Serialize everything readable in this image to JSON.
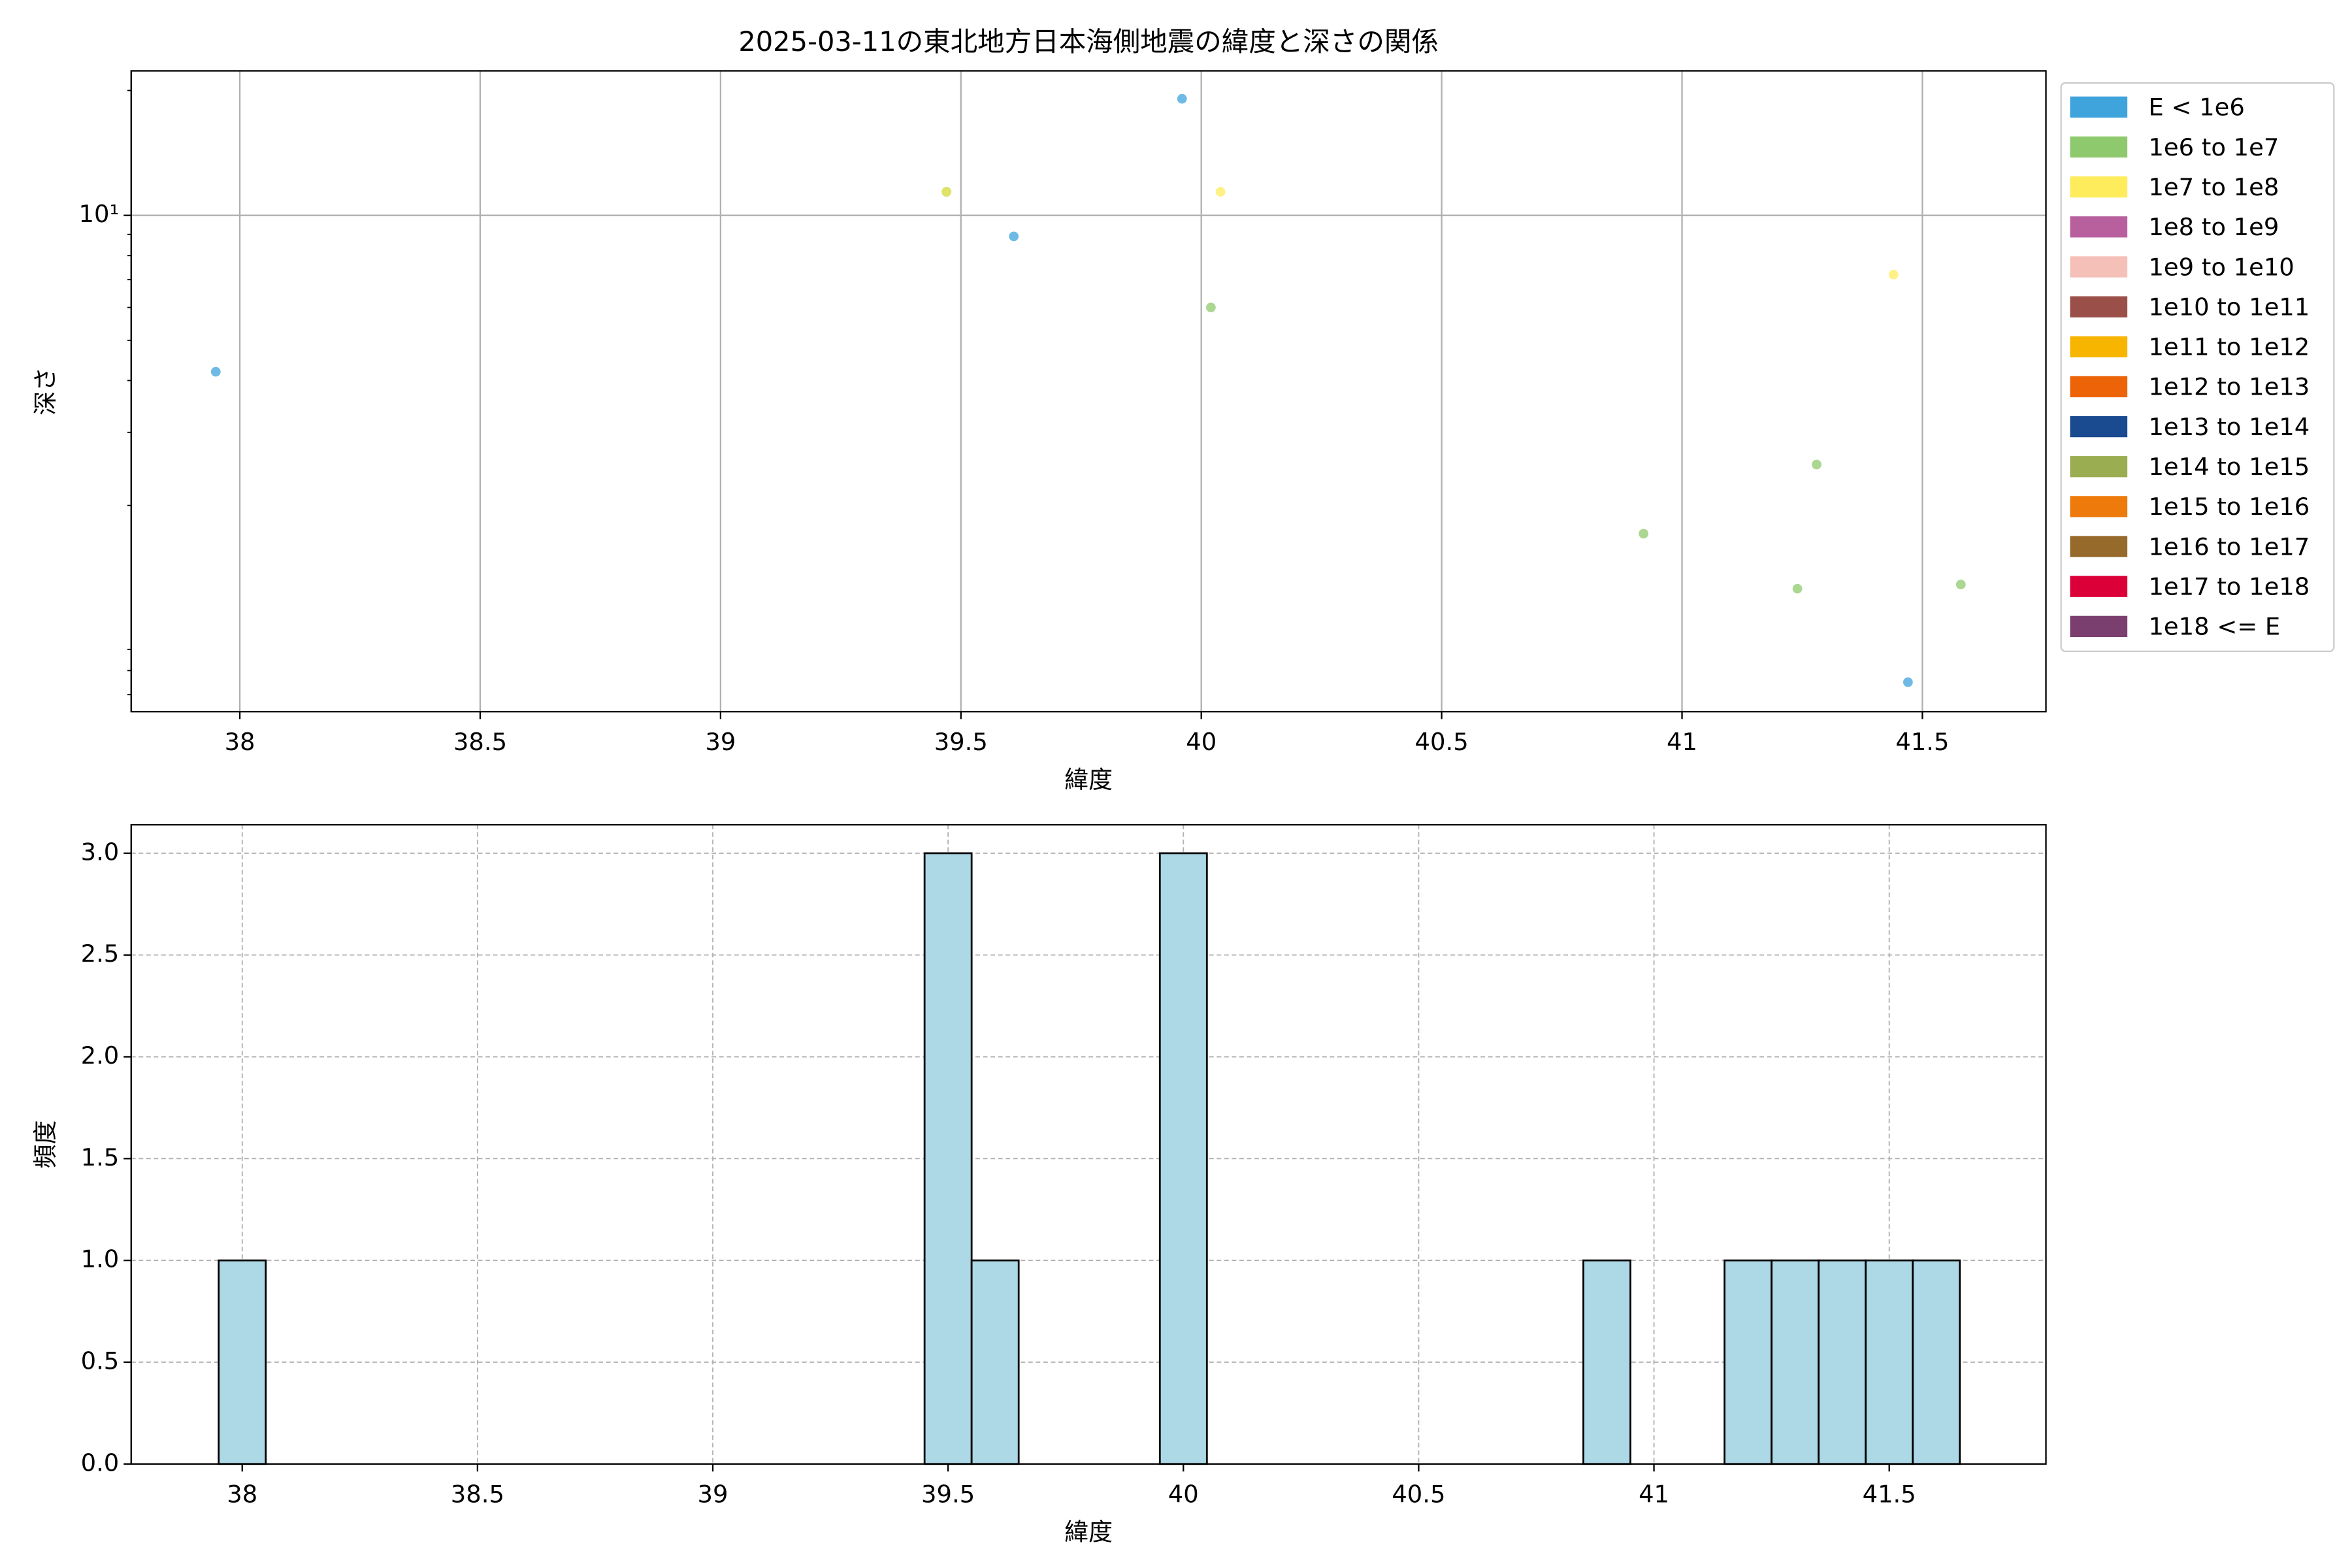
{
  "chart_data": [
    {
      "type": "scatter",
      "title": "2025-03-11の東北地方日本海側地震の緯度と深さの関係",
      "xlabel": "緯度",
      "ylabel": "深さ",
      "log_y": true,
      "grid": true,
      "legend": "outside right",
      "xlim": [
        37.774,
        41.757
      ],
      "xticks": [
        38.0,
        38.5,
        39.0,
        39.5,
        40.0,
        40.5,
        41.0,
        41.5
      ],
      "ylim": [
        0.637,
        22.3
      ],
      "yticks": [
        {
          "value": 10,
          "label": "10¹"
        }
      ],
      "yminor": [
        0.7,
        0.8,
        0.9,
        2,
        3,
        4,
        5,
        6,
        7,
        8,
        9,
        20
      ],
      "series": [
        {
          "name": "E < 1e6",
          "color": "#3fa3dc",
          "x": [
            37.95,
            39.47,
            39.61,
            39.96,
            41.47
          ],
          "values": [
            4.2,
            11.4,
            8.9,
            19.1,
            0.75
          ]
        },
        {
          "name": "1e6 to 1e7",
          "color": "#8fc96e",
          "x": [
            39.47,
            40.02,
            40.92,
            41.24,
            41.28,
            41.58
          ],
          "values": [
            11.4,
            6.0,
            1.71,
            1.26,
            2.51,
            1.29
          ]
        },
        {
          "name": "1e7 to 1e8",
          "color": "#ffec5c",
          "x": [
            39.47,
            40.04,
            41.44
          ],
          "values": [
            11.4,
            11.4,
            7.2
          ]
        },
        {
          "name": "1e8 to 1e9",
          "color": "#b8609e",
          "x": [],
          "values": []
        },
        {
          "name": "1e9 to 1e10",
          "color": "#f5c0b8",
          "x": [],
          "values": []
        },
        {
          "name": "1e10 to 1e11",
          "color": "#9a5049",
          "x": [],
          "values": []
        },
        {
          "name": "1e11 to 1e12",
          "color": "#f7b500",
          "x": [],
          "values": []
        },
        {
          "name": "1e12 to 1e13",
          "color": "#ed6408",
          "x": [],
          "values": []
        },
        {
          "name": "1e13 to 1e14",
          "color": "#1a4a8f",
          "x": [],
          "values": []
        },
        {
          "name": "1e14 to 1e15",
          "color": "#9aad50",
          "x": [],
          "values": []
        },
        {
          "name": "1e15 to 1e16",
          "color": "#ed7a0a",
          "x": [],
          "values": []
        },
        {
          "name": "1e16 to 1e17",
          "color": "#966a2a",
          "x": [],
          "values": []
        },
        {
          "name": "1e17 to 1e18",
          "color": "#dc0038",
          "x": [],
          "values": []
        },
        {
          "name": "1e18 <= E",
          "color": "#7a3f6e",
          "x": [],
          "values": []
        }
      ]
    },
    {
      "type": "histogram",
      "xlabel": "緯度",
      "ylabel": "頻度",
      "grid": true,
      "color": "#add8e6",
      "edgecolor": "#000000",
      "bins": [
        37.95,
        38.05,
        38.15,
        38.25,
        38.35,
        38.45,
        38.55,
        38.65,
        38.75,
        38.85,
        38.95,
        39.05,
        39.15,
        39.25,
        39.35,
        39.45,
        39.55,
        39.65,
        39.75,
        39.85,
        39.95,
        40.05,
        40.15,
        40.25,
        40.35,
        40.45,
        40.55,
        40.65,
        40.75,
        40.85,
        40.95,
        41.05,
        41.15,
        41.25,
        41.35,
        41.45,
        41.55,
        41.65
      ],
      "values": [
        1,
        0,
        0,
        0,
        0,
        0,
        0,
        0,
        0,
        0,
        0,
        0,
        0,
        0,
        0,
        3,
        1,
        0,
        0,
        0,
        3,
        0,
        0,
        0,
        0,
        0,
        0,
        0,
        0,
        1,
        0,
        0,
        1,
        1,
        1,
        1,
        1
      ],
      "xlim": [
        37.764,
        41.833
      ],
      "xticks": [
        38.0,
        38.5,
        39.0,
        39.5,
        40.0,
        40.5,
        41.0,
        41.5
      ],
      "ylim": [
        0,
        3.14
      ],
      "yticks": [
        {
          "value": 0,
          "label": "0.0"
        },
        0.5,
        {
          "value": 1,
          "label": "1.0"
        },
        1.5,
        {
          "value": 2,
          "label": "2.0"
        },
        2.5,
        {
          "value": 3,
          "label": "3.0"
        }
      ]
    }
  ]
}
